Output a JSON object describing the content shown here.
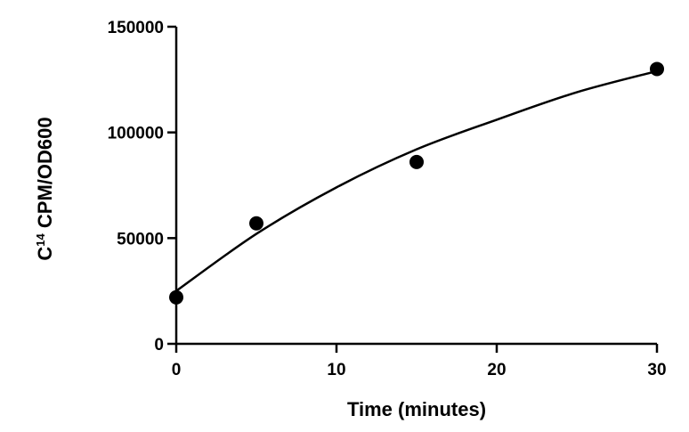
{
  "chart_data": {
    "type": "scatter",
    "xlabel": "Time (minutes)",
    "ylabel_main": "C",
    "ylabel_superscript": "14",
    "ylabel_rest": " CPM/OD600",
    "xlim": [
      0,
      30
    ],
    "ylim": [
      0,
      150000
    ],
    "x_ticks": [
      0,
      10,
      20,
      30
    ],
    "y_ticks": [
      0,
      50000,
      100000,
      150000
    ],
    "x_tick_labels": [
      "0",
      "10",
      "20",
      "30"
    ],
    "y_tick_labels": [
      "0",
      "50000",
      "100000",
      "150000"
    ],
    "grid": false,
    "points": [
      {
        "x": 0,
        "y": 22000
      },
      {
        "x": 5,
        "y": 57000
      },
      {
        "x": 15,
        "y": 86000
      },
      {
        "x": 30,
        "y": 130000
      }
    ],
    "fit_curve": {
      "type": "exponential association",
      "points": [
        {
          "x": 0,
          "y": 25000
        },
        {
          "x": 5,
          "y": 52000
        },
        {
          "x": 10,
          "y": 74000
        },
        {
          "x": 15,
          "y": 92000
        },
        {
          "x": 20,
          "y": 106000
        },
        {
          "x": 25,
          "y": 119000
        },
        {
          "x": 30,
          "y": 129000
        }
      ]
    },
    "marker_color": "#000000",
    "line_color": "#000000"
  }
}
